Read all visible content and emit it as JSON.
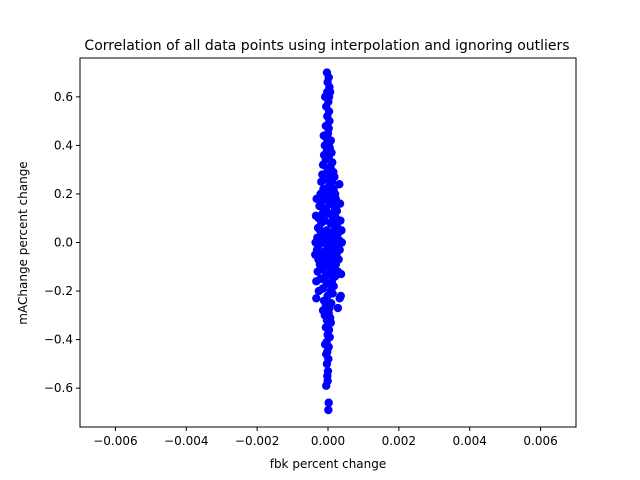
{
  "chart_data": {
    "type": "scatter",
    "title": "Correlation of all data points using interpolation and ignoring outliers",
    "xlabel": "fbk percent change",
    "ylabel": "mAChange percent change",
    "xlim": [
      -0.007,
      0.007
    ],
    "ylim": [
      -0.76,
      0.76
    ],
    "xticks": [
      -0.006,
      -0.004,
      -0.002,
      0.0,
      0.002,
      0.004,
      0.006
    ],
    "xtick_labels": [
      "−0.006",
      "−0.004",
      "−0.002",
      "0.000",
      "0.002",
      "0.004",
      "0.006"
    ],
    "yticks": [
      -0.6,
      -0.4,
      -0.2,
      0.0,
      0.2,
      0.4,
      0.6
    ],
    "ytick_labels": [
      "−0.6",
      "−0.4",
      "−0.2",
      "0.0",
      "0.2",
      "0.4",
      "0.6"
    ],
    "grid": false,
    "marker_color": "#0000ff",
    "series": [
      {
        "points": [
          [
            -3e-05,
            0.7
          ],
          [
            2e-05,
            0.68
          ],
          [
            -1e-05,
            0.66
          ],
          [
            4e-05,
            0.64
          ],
          [
            -2e-05,
            0.62
          ],
          [
            6e-05,
            0.62
          ],
          [
            -8e-05,
            0.6
          ],
          [
            3e-05,
            0.6
          ],
          [
            1e-05,
            0.58
          ],
          [
            -5e-05,
            0.56
          ],
          [
            3e-05,
            0.54
          ],
          [
            -2e-05,
            0.52
          ],
          [
            4e-05,
            0.5
          ],
          [
            -6e-05,
            0.48
          ],
          [
            2e-05,
            0.47
          ],
          [
            0.0,
            0.45
          ],
          [
            -0.00012,
            0.44
          ],
          [
            -4e-05,
            0.43
          ],
          [
            8e-05,
            0.42
          ],
          [
            3e-05,
            0.41
          ],
          [
            -9e-05,
            0.4
          ],
          [
            5e-05,
            0.39
          ],
          [
            -3e-05,
            0.38
          ],
          [
            0.0001,
            0.37
          ],
          [
            -0.00011,
            0.36
          ],
          [
            2e-05,
            0.35
          ],
          [
            -6e-05,
            0.34
          ],
          [
            0.00012,
            0.33
          ],
          [
            -0.00014,
            0.32
          ],
          [
            7e-05,
            0.31
          ],
          [
            -1e-05,
            0.3
          ],
          [
            0.00015,
            0.29
          ],
          [
            -0.00016,
            0.28
          ],
          [
            4e-05,
            0.28
          ],
          [
            0.00018,
            0.27
          ],
          [
            -8e-05,
            0.26
          ],
          [
            0.00011,
            0.25
          ],
          [
            -0.00019,
            0.25
          ],
          [
            0.00032,
            0.24
          ],
          [
            2e-05,
            0.23
          ],
          [
            -0.00013,
            0.22
          ],
          [
            0.00016,
            0.22
          ],
          [
            -4e-05,
            0.21
          ],
          [
            0.0002,
            0.2
          ],
          [
            -0.00021,
            0.2
          ],
          [
            9e-05,
            0.19
          ],
          [
            -0.0001,
            0.18
          ],
          [
            0.00022,
            0.18
          ],
          [
            -0.00017,
            0.17
          ],
          [
            5e-05,
            0.16
          ],
          [
            0.00014,
            0.16
          ],
          [
            -0.00024,
            0.15
          ],
          [
            0.00019,
            0.14
          ],
          [
            -6e-05,
            0.14
          ],
          [
            0.00025,
            0.13
          ],
          [
            -0.00015,
            0.12
          ],
          [
            1e-05,
            0.12
          ],
          [
            0.00012,
            0.11
          ],
          [
            -0.00026,
            0.1
          ],
          [
            0.00023,
            0.1
          ],
          [
            -9e-05,
            0.09
          ],
          [
            0.00035,
            0.09
          ],
          [
            -0.00019,
            0.08
          ],
          [
            7e-05,
            0.08
          ],
          [
            0.00017,
            0.07
          ],
          [
            -0.00028,
            0.06
          ],
          [
            0.00027,
            0.06
          ],
          [
            -3e-05,
            0.05
          ],
          [
            -0.00022,
            0.05
          ],
          [
            0.00013,
            0.04
          ],
          [
            0.00029,
            0.04
          ],
          [
            -0.00012,
            0.03
          ],
          [
            -0.0003,
            0.02
          ],
          [
            4e-05,
            0.02
          ],
          [
            0.00021,
            0.02
          ],
          [
            -0.00017,
            0.01
          ],
          [
            0.00031,
            0.01
          ],
          [
            -7e-05,
            0.0
          ],
          [
            9e-05,
            0.0
          ],
          [
            -0.00025,
            -0.01
          ],
          [
            0.00026,
            -0.01
          ],
          [
            -2e-05,
            -0.02
          ],
          [
            0.00015,
            -0.02
          ],
          [
            -0.00031,
            -0.03
          ],
          [
            0.00033,
            -0.03
          ],
          [
            -0.00014,
            -0.04
          ],
          [
            6e-05,
            -0.04
          ],
          [
            0.00024,
            -0.05
          ],
          [
            -0.0002,
            -0.05
          ],
          [
            -5e-05,
            -0.06
          ],
          [
            0.00018,
            -0.06
          ],
          [
            -0.00027,
            -0.07
          ],
          [
            0.0003,
            -0.07
          ],
          [
            -0.0001,
            -0.08
          ],
          [
            0.0001,
            -0.08
          ],
          [
            0.00022,
            -0.09
          ],
          [
            -0.00023,
            -0.09
          ],
          [
            -1e-05,
            -0.1
          ],
          [
            0.00014,
            -0.11
          ],
          [
            -0.00016,
            -0.11
          ],
          [
            0.00028,
            -0.12
          ],
          [
            -0.00029,
            -0.12
          ],
          [
            3e-05,
            -0.13
          ],
          [
            -8e-05,
            -0.14
          ],
          [
            0.0002,
            -0.14
          ],
          [
            -0.00021,
            -0.15
          ],
          [
            0.00011,
            -0.16
          ],
          [
            -4e-05,
            -0.17
          ],
          [
            0.00016,
            -0.18
          ],
          [
            -0.00015,
            -0.19
          ],
          [
            7e-05,
            -0.2
          ],
          [
            -0.00026,
            -0.2
          ],
          [
            0.00013,
            -0.21
          ],
          [
            -1e-05,
            -0.22
          ],
          [
            -0.00033,
            -0.23
          ],
          [
            0.00033,
            -0.23
          ],
          [
            -0.00011,
            -0.24
          ],
          [
            9e-05,
            -0.25
          ],
          [
            -6e-05,
            -0.26
          ],
          [
            4e-05,
            -0.27
          ],
          [
            0.00028,
            -0.27
          ],
          [
            -0.00014,
            -0.28
          ],
          [
            2e-05,
            -0.29
          ],
          [
            -9e-05,
            -0.3
          ],
          [
            6e-05,
            -0.31
          ],
          [
            -3e-05,
            -0.32
          ],
          [
            8e-05,
            -0.33
          ],
          [
            -6e-05,
            -0.35
          ],
          [
            3e-05,
            -0.36
          ],
          [
            -1e-05,
            -0.38
          ],
          [
            5e-05,
            -0.39
          ],
          [
            -4e-05,
            -0.41
          ],
          [
            -8e-05,
            -0.42
          ],
          [
            2e-05,
            -0.43
          ],
          [
            -2e-05,
            -0.45
          ],
          [
            -5e-05,
            -0.46
          ],
          [
            1e-05,
            -0.48
          ],
          [
            -3e-05,
            -0.5
          ],
          [
            0.0,
            -0.53
          ],
          [
            -2e-05,
            -0.55
          ],
          [
            -1e-05,
            -0.57
          ],
          [
            -5e-05,
            -0.59
          ],
          [
            2e-05,
            -0.66
          ],
          [
            1e-05,
            -0.69
          ],
          [
            0.00036,
            -0.22
          ],
          [
            -0.00034,
            0.11
          ],
          [
            0.00039,
            0.0
          ],
          [
            -0.00036,
            -0.05
          ],
          [
            0.00037,
            -0.13
          ],
          [
            -0.00032,
            0.18
          ],
          [
            0.00034,
            0.16
          ],
          [
            -0.00035,
            0.0
          ],
          [
            0.00038,
            0.05
          ],
          [
            -0.00033,
            -0.16
          ]
        ]
      }
    ]
  }
}
